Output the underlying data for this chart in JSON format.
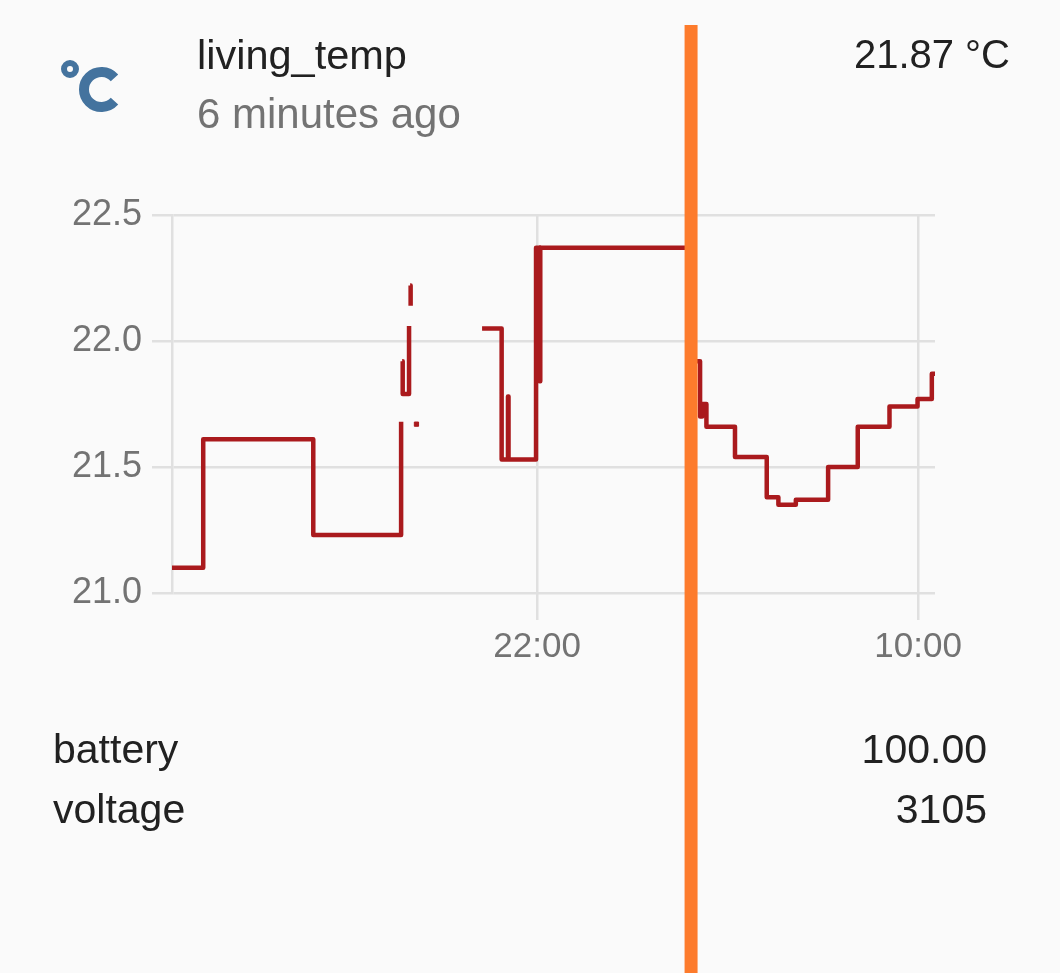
{
  "chart_data": {
    "type": "step",
    "title": "living_temp",
    "subtitle": "6 minutes ago",
    "annotations": [
      "21.87 °C",
      "battery",
      "100.00",
      "voltage",
      "3105"
    ],
    "series": [
      {
        "color": "#aa1a1d",
        "x": [
          "2000-01-01T10:30",
          "2000-01-01T11:29",
          "2000-01-01T14:57",
          "2000-01-01T17:43",
          "2000-01-01T17:44",
          "2000-01-01T17:45",
          "2000-01-01T17:46",
          "2000-01-01T17:58",
          "2000-01-01T17:59",
          "2000-01-01T18:00",
          "2000-01-01T18:01",
          "2000-01-01T18:02",
          "2000-01-01T20:16",
          "2000-01-01T20:53",
          "2000-01-01T21:05",
          "2000-01-01T21:06",
          "2000-01-01T21:58",
          "2000-01-01T22:05",
          "2000-01-01T22:06",
          "2000-01-02T02:47",
          "2000-01-02T03:08",
          "2000-01-02T03:12",
          "2000-01-02T03:20",
          "2000-01-02T04:14",
          "2000-01-02T05:14",
          "2000-01-02T05:36",
          "2000-01-02T06:09",
          "2000-01-02T07:10",
          "2000-01-02T08:06",
          "2000-01-02T09:06",
          "2000-01-02T09:59",
          "2000-01-02T10:26",
          "2000-01-02T10:32"
        ],
        "values": [
          21.1,
          21.61,
          21.23,
          21.68,
          null,
          21.92,
          21.79,
          22.06,
          null,
          22.22,
          22.14,
          null,
          22.05,
          21.53,
          21.78,
          21.53,
          22.37,
          21.84,
          22.37,
          21.92,
          21.7,
          21.75,
          21.66,
          21.54,
          21.38,
          21.35,
          21.37,
          21.5,
          21.66,
          21.74,
          21.77,
          21.87,
          21.87
        ]
      },
      {
        "type": "scatter",
        "marker": "square",
        "color": "#aa1a1d",
        "x": [
          "2000-01-01T18:12"
        ],
        "values": [
          21.67
        ]
      }
    ],
    "marker": "none",
    "legend": false,
    "grid": true,
    "xlim": [
      "2000-01-01T10:30",
      "2000-01-02T10:32"
    ],
    "xticks": [
      {
        "value": "2000-01-01T22:00",
        "label": "22:00"
      },
      {
        "value": "2000-01-02T10:00",
        "label": "10:00"
      }
    ],
    "ylim": [
      21.0,
      22.5
    ],
    "yticks": [
      {
        "value": 21,
        "label": "21.0"
      },
      21.5,
      {
        "value": 22,
        "label": "22.0"
      },
      22.5
    ],
    "ref_lines": [
      {
        "axis": "x",
        "value": "2000-01-02T02:51",
        "color": "#fd7b2c"
      }
    ]
  }
}
